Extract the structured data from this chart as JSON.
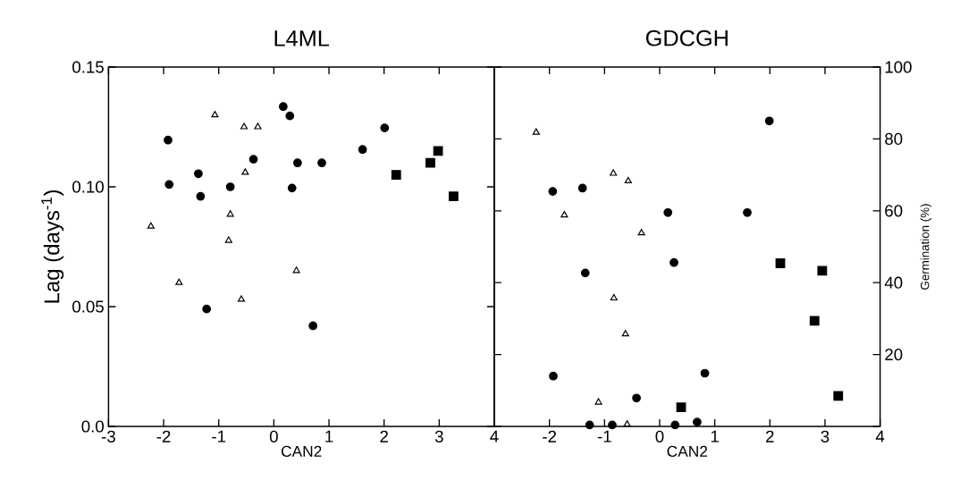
{
  "chart_data": [
    {
      "type": "scatter",
      "title": "L4ML",
      "xlabel": "CAN2",
      "ylabel": "Lag (days$^{-1}$)",
      "xlim": [
        -3,
        4
      ],
      "xticks": [
        -3,
        -2,
        -1,
        0,
        1,
        2,
        3,
        4
      ],
      "ylim": [
        0,
        0.15
      ],
      "yticks": [
        {
          "value": 0,
          "label": "0.0"
        },
        {
          "value": 0.05,
          "label": "0.05"
        },
        {
          "value": 0.1,
          "label": "0.10"
        },
        {
          "value": 0.15,
          "label": "0.15"
        }
      ],
      "series": [
        {
          "marker": "circle",
          "color": "#000000",
          "x": [
            0.17,
            0.29,
            -1.92,
            -1.9,
            -1.37,
            -1.33,
            -0.79,
            -0.37,
            0.43,
            0.33,
            0.87,
            1.61,
            2.01,
            -1.22,
            0.71
          ],
          "values": [
            0.1335,
            0.1296,
            0.1195,
            0.101,
            0.1055,
            0.096,
            0.1,
            0.1115,
            0.11,
            0.0995,
            0.11,
            0.1156,
            0.1246,
            0.049,
            0.042
          ]
        },
        {
          "marker": "square",
          "color": "#000000",
          "x": [
            2.22,
            2.84,
            2.98,
            3.26
          ],
          "values": [
            0.105,
            0.11,
            0.115,
            0.096
          ]
        },
        {
          "marker": "triangle",
          "color": "#000000",
          "x": [
            -1.07,
            -0.54,
            -0.29,
            -0.52,
            -0.79,
            -0.82,
            -2.23,
            -1.72,
            -0.59,
            0.41
          ],
          "values": [
            0.13,
            0.125,
            0.125,
            0.106,
            0.0885,
            0.0776,
            0.0835,
            0.06,
            0.053,
            0.065
          ]
        }
      ]
    },
    {
      "type": "scatter",
      "title": "GDCGH",
      "xlabel": "CAN2",
      "y2label": "Germination (%)",
      "xlim": [
        -3,
        4
      ],
      "xticks": [
        {
          "value": -3,
          "label": null
        },
        -2,
        -1,
        0,
        1,
        2,
        3,
        4
      ],
      "y2lim": [
        0,
        100
      ],
      "y2ticks": [
        {
          "value": 0,
          "label": null
        },
        20,
        40,
        60,
        80,
        100
      ],
      "series": [
        {
          "axis": "y2",
          "marker": "circle",
          "color": "#000000",
          "x": [
            -1.94,
            -1.4,
            0.15,
            1.59,
            1.99,
            -1.35,
            0.26,
            -1.93,
            0.82,
            -0.42,
            -1.27,
            -0.86,
            0.28,
            0.68
          ],
          "values": [
            65.4,
            66.3,
            59.5,
            59.5,
            85,
            42.7,
            45.6,
            14,
            14.8,
            7.9,
            0.4,
            0.4,
            0.4,
            1.2
          ]
        },
        {
          "axis": "y2",
          "marker": "square",
          "color": "#000000",
          "x": [
            2.19,
            2.95,
            2.81,
            3.24,
            0.39
          ],
          "values": [
            45.4,
            43.3,
            29.4,
            8.5,
            5.3
          ]
        },
        {
          "axis": "y2",
          "marker": "triangle",
          "color": "#000000",
          "x": [
            -2.24,
            -0.84,
            -0.57,
            -1.73,
            -0.33,
            -0.83,
            -0.62,
            -1.11,
            -0.59
          ],
          "values": [
            81.8,
            70.4,
            68.3,
            58.8,
            53.8,
            35.7,
            25.7,
            6.7,
            0.6
          ]
        }
      ]
    }
  ]
}
